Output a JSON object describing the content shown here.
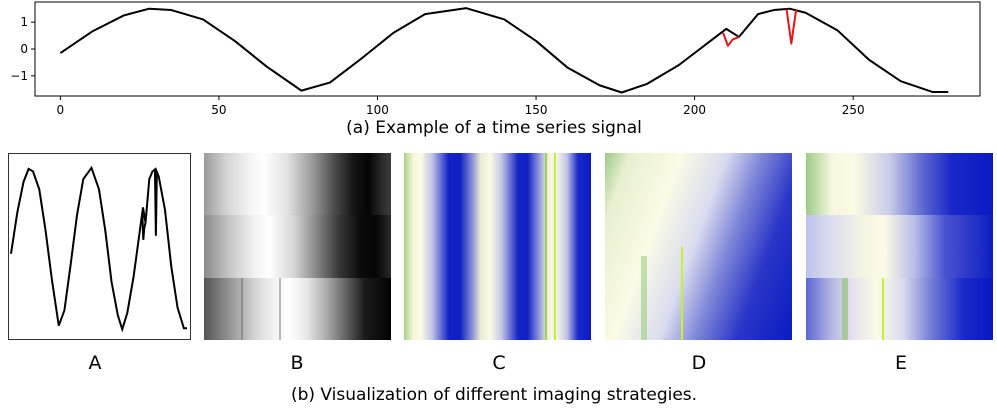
{
  "chart_data": [
    {
      "type": "line",
      "caption": "(a) Example of a time series signal",
      "xlim": [
        -8,
        290
      ],
      "ylim": [
        -1.75,
        1.75
      ],
      "x_ticks": [
        0,
        50,
        100,
        150,
        200,
        250
      ],
      "y_ticks": [
        1,
        0,
        -1
      ],
      "y_tick_labels": [
        "1",
        "0",
        "−1"
      ],
      "series": [
        {
          "color": "#000000",
          "x": [
            0,
            10,
            20,
            28,
            35,
            45,
            55,
            65,
            76,
            85,
            95,
            105,
            115,
            128,
            140,
            150,
            160,
            170,
            177,
            185,
            195,
            205,
            210,
            214,
            220,
            225,
            230,
            235,
            245,
            255,
            265,
            275,
            280
          ],
          "y": [
            -0.15,
            0.65,
            1.25,
            1.5,
            1.45,
            1.1,
            0.3,
            -0.65,
            -1.55,
            -1.25,
            -0.35,
            0.6,
            1.3,
            1.52,
            1.1,
            0.3,
            -0.7,
            -1.35,
            -1.62,
            -1.3,
            -0.6,
            0.3,
            0.75,
            0.45,
            1.3,
            1.45,
            1.5,
            1.35,
            0.7,
            -0.4,
            -1.2,
            -1.6,
            -1.6
          ]
        }
      ],
      "anomalies": [
        {
          "color": "#e8141b",
          "x": [
            209,
            210.5,
            212,
            214
          ],
          "y": [
            0.6,
            0.12,
            0.35,
            0.45
          ]
        },
        {
          "color": "#e8141b",
          "x": [
            229,
            230.5,
            232
          ],
          "y": [
            1.48,
            0.2,
            1.45
          ]
        }
      ]
    },
    {
      "type": "image-panels",
      "caption": "(b) Visualization of different imaging strategies.",
      "panels": [
        {
          "label": "A",
          "kind": "line-plot"
        },
        {
          "label": "B",
          "kind": "gray-bands"
        },
        {
          "label": "C",
          "kind": "blue-stripes"
        },
        {
          "label": "D",
          "kind": "blue-diagonal"
        },
        {
          "label": "E",
          "kind": "blue-bands"
        }
      ]
    }
  ]
}
